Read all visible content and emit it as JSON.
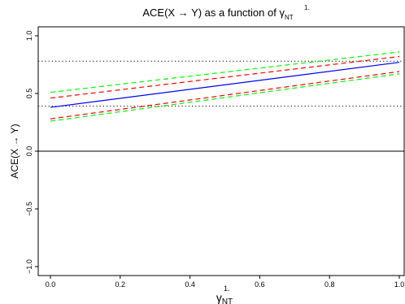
{
  "chart_data": {
    "type": "line",
    "title": "ACE(X → Y) as a function of γ",
    "title_sup": "1.",
    "title_sub": "NT",
    "xlabel": "γ",
    "xlabel_sup": "1.",
    "xlabel_sub": "NT",
    "ylabel": "ACE(X → Y)",
    "xlim": [
      0.0,
      1.0
    ],
    "ylim": [
      -1.0,
      1.0
    ],
    "xticks": [
      "0.0",
      "0.2",
      "0.4",
      "0.6",
      "0.8",
      "1.0"
    ],
    "yticks": [
      "−1.0",
      "−0.5",
      "0.0",
      "0.5",
      "1.0"
    ],
    "grid": false,
    "series": [
      {
        "color": "#0000ff",
        "dash": "solid",
        "x": [
          0.0,
          1.0
        ],
        "y": [
          0.38,
          0.77
        ]
      },
      {
        "color": "#ff0000",
        "dash": "dashed",
        "x": [
          0.0,
          1.0
        ],
        "y": [
          0.46,
          0.82
        ]
      },
      {
        "color": "#ff0000",
        "dash": "dashed",
        "x": [
          0.0,
          1.0
        ],
        "y": [
          0.28,
          0.69
        ]
      },
      {
        "color": "#00ff00",
        "dash": "dashed",
        "x": [
          0.0,
          1.0
        ],
        "y": [
          0.51,
          0.86
        ]
      },
      {
        "color": "#00ff00",
        "dash": "dashed",
        "x": [
          0.0,
          1.0
        ],
        "y": [
          0.26,
          0.67
        ]
      }
    ],
    "reference_lines": [
      {
        "y": 0.78,
        "style": "dotted",
        "color": "#000000"
      },
      {
        "y": 0.39,
        "style": "dotted",
        "color": "#000000"
      },
      {
        "y": 0.0,
        "style": "solid",
        "color": "#000000"
      }
    ]
  }
}
